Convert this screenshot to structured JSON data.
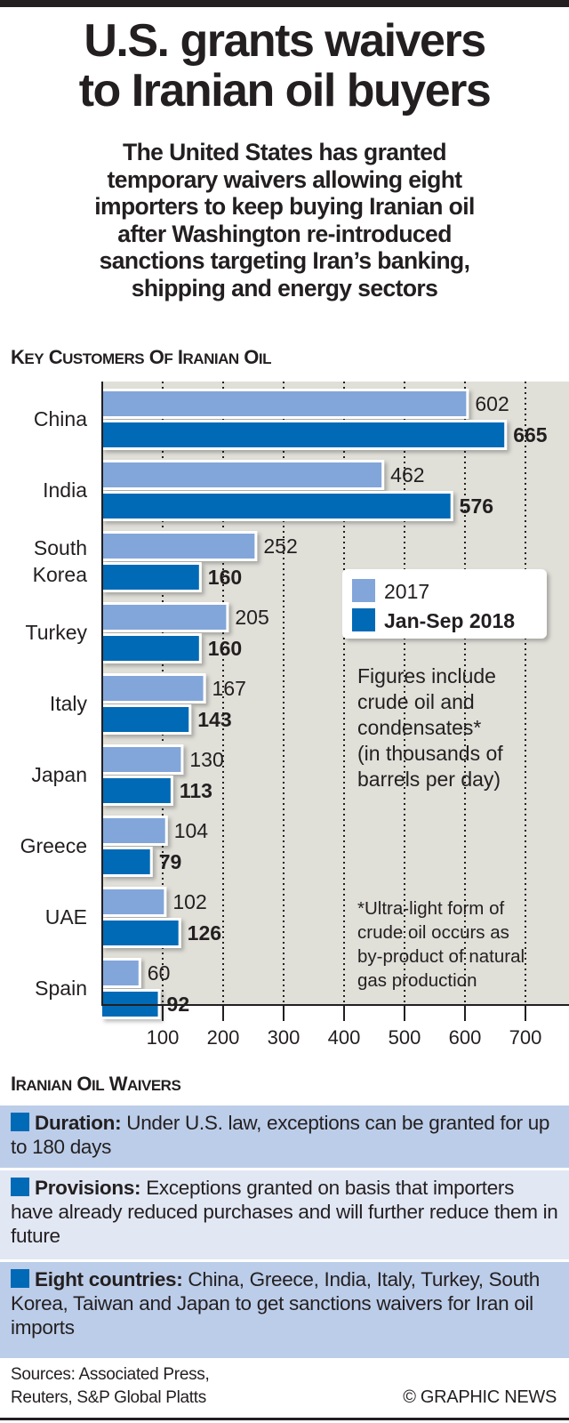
{
  "header": {
    "title_lines": [
      "U.S. grants waivers",
      "to Iranian oil buyers"
    ],
    "subtitle_lines": [
      "The United States has granted",
      "temporary waivers allowing eight",
      "importers to keep buying Iranian oil",
      "after Washington re-introduced",
      "sanctions targeting Iran’s banking,",
      "shipping and energy sectors"
    ]
  },
  "chart_data": {
    "type": "bar",
    "orientation": "horizontal",
    "title": "KEY CUSTOMERS OF IRANIAN OIL",
    "categories": [
      "China",
      "India",
      "South Korea",
      "Turkey",
      "Italy",
      "Japan",
      "Greece",
      "UAE",
      "Spain"
    ],
    "category_label_lines": [
      [
        "China"
      ],
      [
        "India"
      ],
      [
        "South",
        "Korea"
      ],
      [
        "Turkey"
      ],
      [
        "Italy"
      ],
      [
        "Japan"
      ],
      [
        "Greece"
      ],
      [
        "UAE"
      ],
      [
        "Spain"
      ]
    ],
    "series": [
      {
        "name": "2017",
        "color": "#82a6d9",
        "values": [
          602,
          462,
          252,
          205,
          167,
          130,
          104,
          102,
          60
        ]
      },
      {
        "name": "Jan-Sep 2018",
        "color": "#006ab6",
        "values": [
          665,
          576,
          160,
          160,
          143,
          113,
          79,
          126,
          92
        ]
      }
    ],
    "xlim": [
      0,
      760
    ],
    "xticks": [
      100,
      200,
      300,
      400,
      500,
      600,
      700
    ],
    "xlabel": "",
    "ylabel": "",
    "grid": "vertical dotted",
    "legend_position": "right",
    "background_color": "#e0dfd8",
    "note_lines": [
      "Figures include",
      "crude oil and",
      "condensates*",
      "(in thousands of",
      "barrels per day)"
    ],
    "footnote_lines": [
      "*Ultra-light form of",
      "crude oil occurs as",
      "by-product of natural",
      "gas production"
    ]
  },
  "waivers": {
    "title": "IRANIAN OIL WAIVERS",
    "marker_color": "#006ab6",
    "items": [
      {
        "label": "Duration:",
        "text": "Under U.S. law, exceptions can be granted for up to 180 days"
      },
      {
        "label": "Provisions:",
        "text": "Exceptions granted on basis that importers have already reduced purchases and will further reduce them in future"
      },
      {
        "label": "Eight countries:",
        "text": "China, Greece, India, Italy, Turkey, South Korea, Taiwan and Japan to get sanctions waivers for Iran oil imports"
      }
    ]
  },
  "footer": {
    "sources_lines": [
      "Sources: Associated Press,",
      "Reuters, S&P Global Platts"
    ],
    "credit": "© GRAPHIC NEWS"
  }
}
